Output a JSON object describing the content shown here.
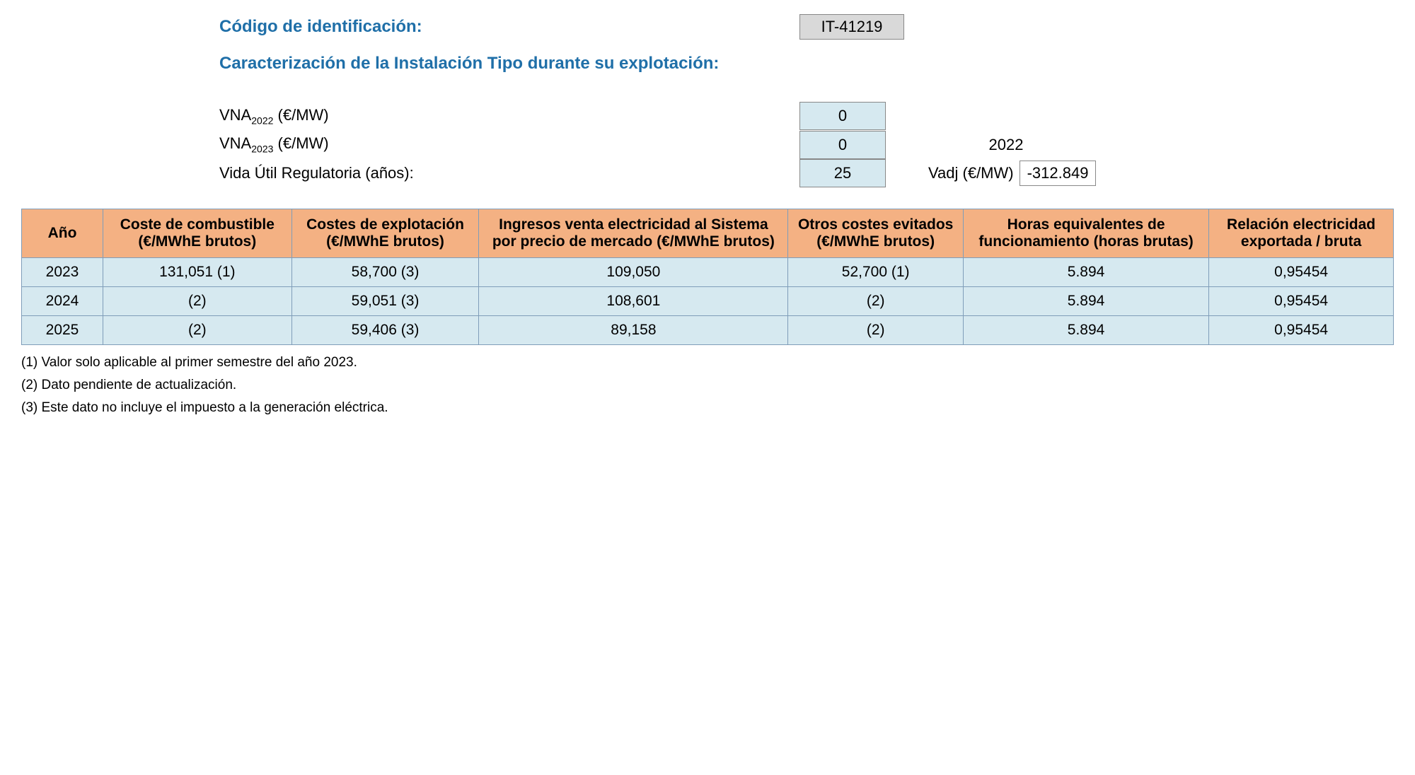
{
  "header": {
    "code_label": "Código de identificación:",
    "code_value": "IT-41219",
    "section_title": "Caracterización de la Instalación Tipo durante su explotación:"
  },
  "params": {
    "vna_2022_label_pre": "VNA",
    "vna_2022_sub": "2022",
    "vna_2022_label_post": " (€/MW)",
    "vna_2022_value": "0",
    "vna_2023_label_pre": "VNA",
    "vna_2023_sub": "2023",
    "vna_2023_label_post": " (€/MW)",
    "vna_2023_value": "0",
    "year_extra": "2022",
    "vida_label": "Vida Útil Regulatoria (años):",
    "vida_value": "25",
    "vadj_label": "Vadj (€/MW)",
    "vadj_value": "-312.849"
  },
  "table": {
    "headers": {
      "year": "Año",
      "fuel": "Coste de combustible (€/MWhE brutos)",
      "opex": "Costes de explotación (€/MWhE brutos)",
      "income": "Ingresos venta electricidad al Sistema por precio de mercado (€/MWhE brutos)",
      "avoided": "Otros costes evitados (€/MWhE brutos)",
      "hours": "Horas equivalentes de funcionamiento (horas brutas)",
      "ratio": "Relación electricidad exportada / bruta"
    },
    "rows": [
      {
        "year": "2023",
        "fuel": "131,051 (1)",
        "opex": "58,700 (3)",
        "income": "109,050",
        "avoided": "52,700 (1)",
        "hours": "5.894",
        "ratio": "0,95454"
      },
      {
        "year": "2024",
        "fuel": "(2)",
        "opex": "59,051 (3)",
        "income": "108,601",
        "avoided": "(2)",
        "hours": "5.894",
        "ratio": "0,95454"
      },
      {
        "year": "2025",
        "fuel": "(2)",
        "opex": "59,406 (3)",
        "income": "89,158",
        "avoided": "(2)",
        "hours": "5.894",
        "ratio": "0,95454"
      }
    ]
  },
  "footnotes": {
    "n1": "(1) Valor solo aplicable al primer semestre del año 2023.",
    "n2": "(2) Dato pendiente de actualización.",
    "n3": "(3) Este dato no incluye el impuesto a la generación eléctrica."
  }
}
